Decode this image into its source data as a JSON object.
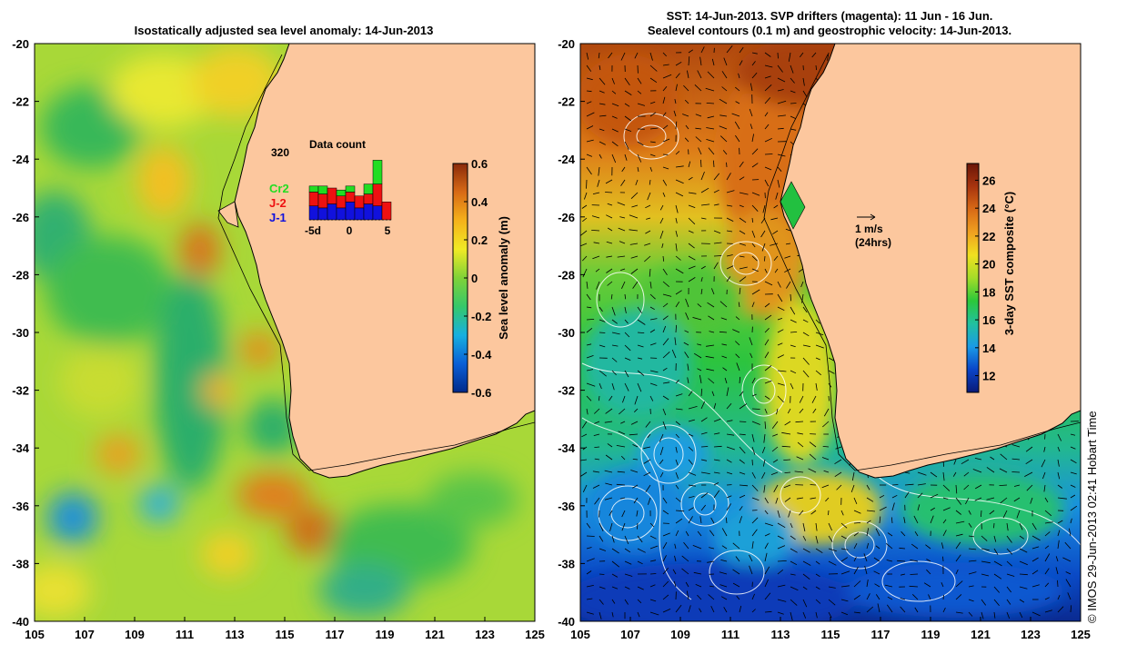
{
  "left_panel": {
    "title": "Isostatically adjusted sea level anomaly: 14-Jun-2013",
    "lat_ticks": [
      "-20",
      "-22",
      "-24",
      "-26",
      "-28",
      "-30",
      "-32",
      "-34",
      "-36",
      "-38",
      "-40"
    ],
    "lon_ticks": [
      "105",
      "107",
      "109",
      "111",
      "113",
      "115",
      "117",
      "119",
      "121",
      "123",
      "125"
    ],
    "colorbar": {
      "label": "Sea level anomaly (m)",
      "ticks": [
        "0.6",
        "0.4",
        "0.2",
        "0",
        "-0.2",
        "-0.4",
        "-0.6"
      ],
      "range": [
        -0.6,
        0.6
      ],
      "colors": [
        "#002a8a",
        "#0a5fd6",
        "#17b0e0",
        "#35c86a",
        "#7fd238",
        "#f0ea25",
        "#f5b21a",
        "#d86a16",
        "#8a2a0a"
      ]
    },
    "inset": {
      "title": "Data count",
      "max_label": "320",
      "x_ticks": [
        "-5d",
        "0",
        "5"
      ],
      "legend": [
        {
          "label": "Cr2",
          "color": "#22dd22"
        },
        {
          "label": "J-2",
          "color": "#ee1111"
        },
        {
          "label": "J-1",
          "color": "#1111dd"
        }
      ],
      "bars": [
        {
          "j1": 70,
          "j2": 70,
          "cr2": 30
        },
        {
          "j1": 60,
          "j2": 70,
          "cr2": 40
        },
        {
          "j1": 80,
          "j2": 80,
          "cr2": 0
        },
        {
          "j1": 60,
          "j2": 60,
          "cr2": 30
        },
        {
          "j1": 90,
          "j2": 50,
          "cr2": 30
        },
        {
          "j1": 60,
          "j2": 60,
          "cr2": 0
        },
        {
          "j1": 80,
          "j2": 50,
          "cr2": 50
        },
        {
          "j1": 70,
          "j2": 110,
          "cr2": 120
        },
        {
          "j1": 0,
          "j2": 90,
          "cr2": 0
        }
      ]
    }
  },
  "right_panel": {
    "title_line1": "SST: 14-Jun-2013. SVP drifters (magenta): 11 Jun - 16 Jun.",
    "title_line2": "Sealevel contours (0.1 m) and geostrophic velocity: 14-Jun-2013.",
    "lat_ticks": [
      "-20",
      "-22",
      "-24",
      "-26",
      "-28",
      "-30",
      "-32",
      "-34",
      "-36",
      "-38",
      "-40"
    ],
    "lon_ticks": [
      "105",
      "107",
      "109",
      "111",
      "113",
      "115",
      "117",
      "119",
      "121",
      "123",
      "125"
    ],
    "scale_arrow_label": "1 m/s",
    "scale_arrow_sublabel": "(24hrs)",
    "colorbar": {
      "label": "3-day SST composite (°C)",
      "ticks": [
        "26",
        "24",
        "22",
        "20",
        "18",
        "16",
        "14",
        "12"
      ],
      "range": [
        10.8,
        27.2
      ],
      "colors": [
        "#0a1a78",
        "#0a45c8",
        "#1a9be6",
        "#22c0a0",
        "#2cc83a",
        "#a4dc28",
        "#f0e020",
        "#f0a020",
        "#d86a16",
        "#a8340e",
        "#6a1608"
      ]
    }
  },
  "credit": "© IMOS 29-Jun-2013 02:41 Hobart Time",
  "colors": {
    "land": "#fcc79e",
    "coast": "#000000",
    "contour": "#ffffff"
  }
}
